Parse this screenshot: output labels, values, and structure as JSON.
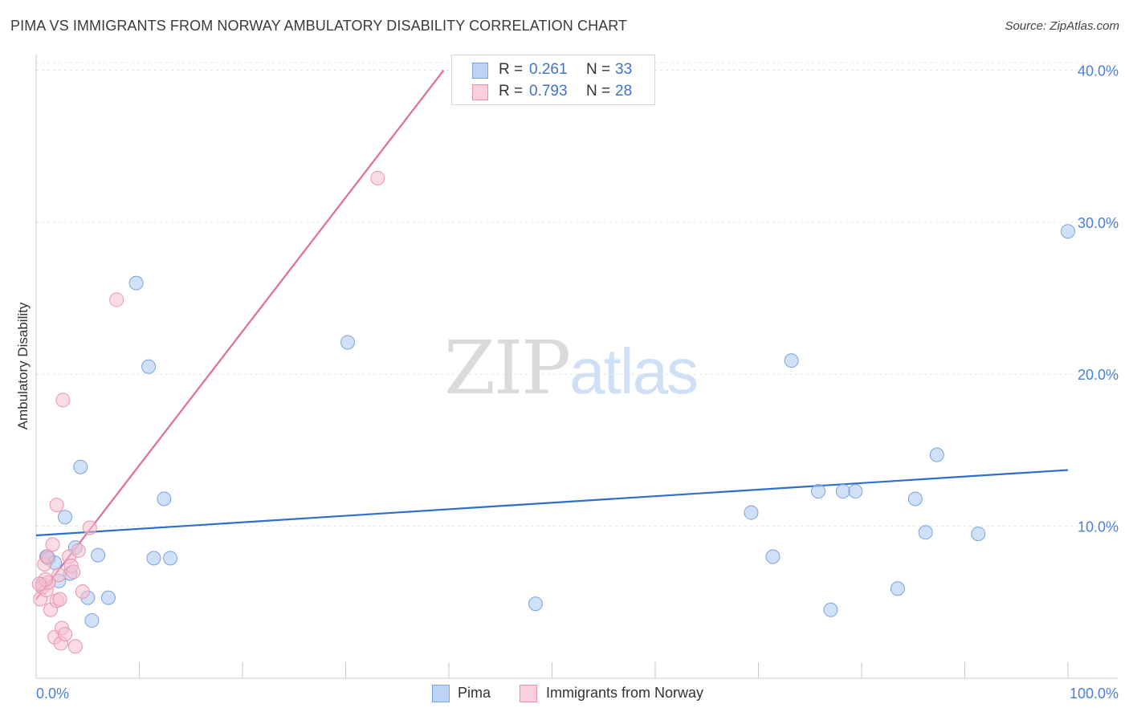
{
  "header": {
    "title": "PIMA VS IMMIGRANTS FROM NORWAY AMBULATORY DISABILITY CORRELATION CHART",
    "source": "Source: ZipAtlas.com"
  },
  "watermark": {
    "zip": "ZIP",
    "atlas": "atlas"
  },
  "legend": {
    "rows": [
      {
        "r_label": "R =",
        "r_value": "0.261",
        "n_label": "N =",
        "n_value": "33",
        "color": "#a9c6ee",
        "border": "#6f9ad8"
      },
      {
        "r_label": "R =",
        "r_value": "0.793",
        "n_label": "N =",
        "n_value": "28",
        "color": "#f7bfd0",
        "border": "#e58aa8"
      }
    ]
  },
  "bottom_legend": [
    {
      "label": "Pima",
      "color": "#a9c6ee",
      "border": "#6f9ad8"
    },
    {
      "label": "Immigrants from Norway",
      "color": "#f7bfd0",
      "border": "#e58aa8"
    }
  ],
  "chart_data": {
    "type": "scatter",
    "title": "PIMA VS IMMIGRANTS FROM NORWAY AMBULATORY DISABILITY CORRELATION CHART",
    "xlabel": "",
    "ylabel": "Ambulatory Disability",
    "xlim": [
      0,
      100
    ],
    "ylim": [
      0,
      40.5
    ],
    "x_tick_labels": [
      "0.0%",
      "100.0%"
    ],
    "y_ticks": [
      10,
      20,
      30,
      40
    ],
    "y_tick_labels": [
      "10.0%",
      "20.0%",
      "30.0%",
      "40.0%"
    ],
    "grid": true,
    "series": [
      {
        "name": "Pima",
        "color": "#a9c6ee",
        "edge": "#7ba3dc",
        "line_color": "#2f6fcc",
        "trend": {
          "x": [
            0,
            100
          ],
          "y": [
            9.4,
            13.7
          ]
        },
        "points": [
          {
            "x": 1.0,
            "y": 8.0
          },
          {
            "x": 1.2,
            "y": 7.9
          },
          {
            "x": 1.8,
            "y": 7.6
          },
          {
            "x": 2.2,
            "y": 6.4
          },
          {
            "x": 2.8,
            "y": 10.6
          },
          {
            "x": 3.3,
            "y": 6.9
          },
          {
            "x": 3.8,
            "y": 8.6
          },
          {
            "x": 4.3,
            "y": 13.9
          },
          {
            "x": 5.0,
            "y": 5.3
          },
          {
            "x": 5.4,
            "y": 3.8
          },
          {
            "x": 6.0,
            "y": 8.1
          },
          {
            "x": 7.0,
            "y": 5.3
          },
          {
            "x": 9.7,
            "y": 26.0
          },
          {
            "x": 10.9,
            "y": 20.5
          },
          {
            "x": 11.4,
            "y": 7.9
          },
          {
            "x": 12.4,
            "y": 11.8
          },
          {
            "x": 13.0,
            "y": 7.9
          },
          {
            "x": 30.2,
            "y": 22.1
          },
          {
            "x": 48.4,
            "y": 4.9
          },
          {
            "x": 69.3,
            "y": 10.9
          },
          {
            "x": 71.4,
            "y": 8.0
          },
          {
            "x": 73.2,
            "y": 20.9
          },
          {
            "x": 75.8,
            "y": 12.3
          },
          {
            "x": 77.0,
            "y": 4.5
          },
          {
            "x": 78.2,
            "y": 12.3
          },
          {
            "x": 79.4,
            "y": 12.3
          },
          {
            "x": 83.5,
            "y": 5.9
          },
          {
            "x": 85.2,
            "y": 11.8
          },
          {
            "x": 86.2,
            "y": 9.6
          },
          {
            "x": 87.3,
            "y": 14.7
          },
          {
            "x": 91.3,
            "y": 9.5
          },
          {
            "x": 100.0,
            "y": 29.4
          },
          {
            "x": 0.6,
            "y": 6.2
          }
        ]
      },
      {
        "name": "Immigrants from Norway",
        "color": "#f7bfd0",
        "edge": "#e892ae",
        "line_color": "#e06d96",
        "trend": {
          "x": [
            0,
            39.5
          ],
          "y": [
            5.2,
            40.0
          ]
        },
        "points": [
          {
            "x": 0.4,
            "y": 5.2
          },
          {
            "x": 0.6,
            "y": 6.0
          },
          {
            "x": 0.8,
            "y": 7.5
          },
          {
            "x": 1.0,
            "y": 5.8
          },
          {
            "x": 1.2,
            "y": 6.3
          },
          {
            "x": 1.4,
            "y": 4.5
          },
          {
            "x": 1.6,
            "y": 8.8
          },
          {
            "x": 1.8,
            "y": 2.7
          },
          {
            "x": 2.0,
            "y": 5.1
          },
          {
            "x": 2.3,
            "y": 5.2
          },
          {
            "x": 2.0,
            "y": 11.4
          },
          {
            "x": 2.4,
            "y": 2.3
          },
          {
            "x": 2.5,
            "y": 3.3
          },
          {
            "x": 2.6,
            "y": 18.3
          },
          {
            "x": 2.8,
            "y": 2.9
          },
          {
            "x": 3.2,
            "y": 8.0
          },
          {
            "x": 3.4,
            "y": 7.4
          },
          {
            "x": 3.6,
            "y": 7.0
          },
          {
            "x": 3.8,
            "y": 2.1
          },
          {
            "x": 4.1,
            "y": 8.4
          },
          {
            "x": 4.5,
            "y": 5.7
          },
          {
            "x": 5.2,
            "y": 9.9
          },
          {
            "x": 7.8,
            "y": 24.9
          },
          {
            "x": 33.1,
            "y": 32.9
          },
          {
            "x": 0.9,
            "y": 6.5
          },
          {
            "x": 1.1,
            "y": 8.0
          },
          {
            "x": 0.3,
            "y": 6.2
          },
          {
            "x": 2.2,
            "y": 6.8
          }
        ]
      }
    ]
  }
}
